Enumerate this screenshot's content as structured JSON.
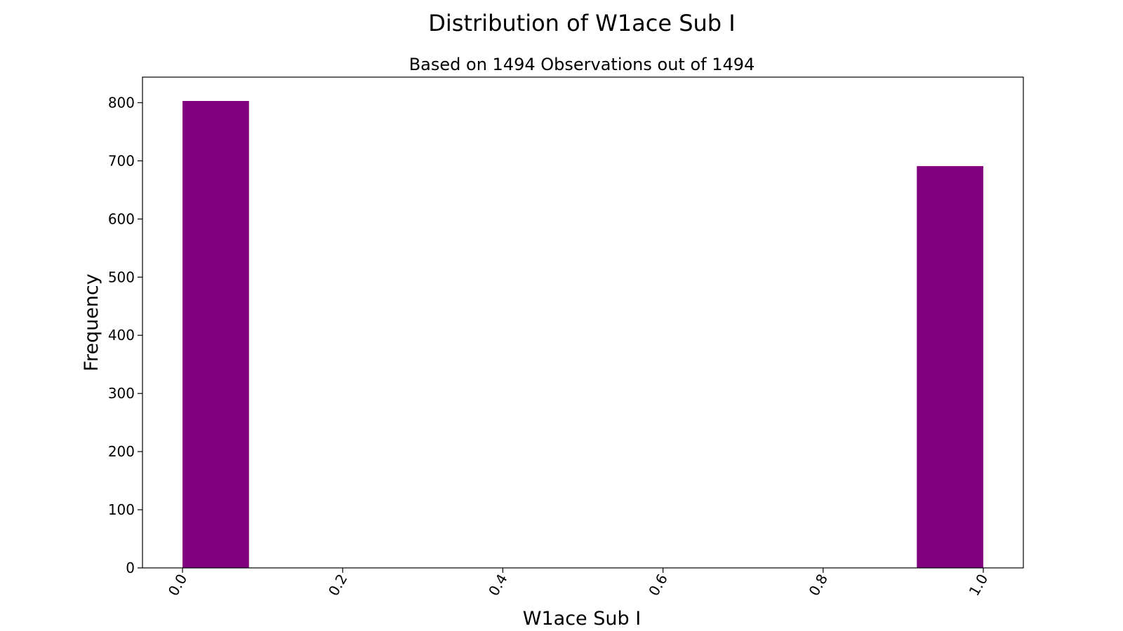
{
  "chart_data": {
    "type": "bar",
    "title": "Distribution of W1ace Sub I",
    "subtitle": "Based on 1494 Observations out of 1494",
    "xlabel": "W1ace Sub I",
    "ylabel": "Frequency",
    "bar_color": "#800080",
    "xlim": [
      -0.05,
      1.05
    ],
    "ylim": [
      0,
      844
    ],
    "x_ticks": [
      "0.0",
      "0.2",
      "0.4",
      "0.6",
      "0.8",
      "1.0"
    ],
    "y_ticks": [
      "0",
      "100",
      "200",
      "300",
      "400",
      "500",
      "600",
      "700",
      "800"
    ],
    "grid": false,
    "bins": [
      {
        "start": 0.0,
        "end": 0.083,
        "value": 803
      },
      {
        "start": 0.917,
        "end": 1.0,
        "value": 691
      }
    ]
  }
}
